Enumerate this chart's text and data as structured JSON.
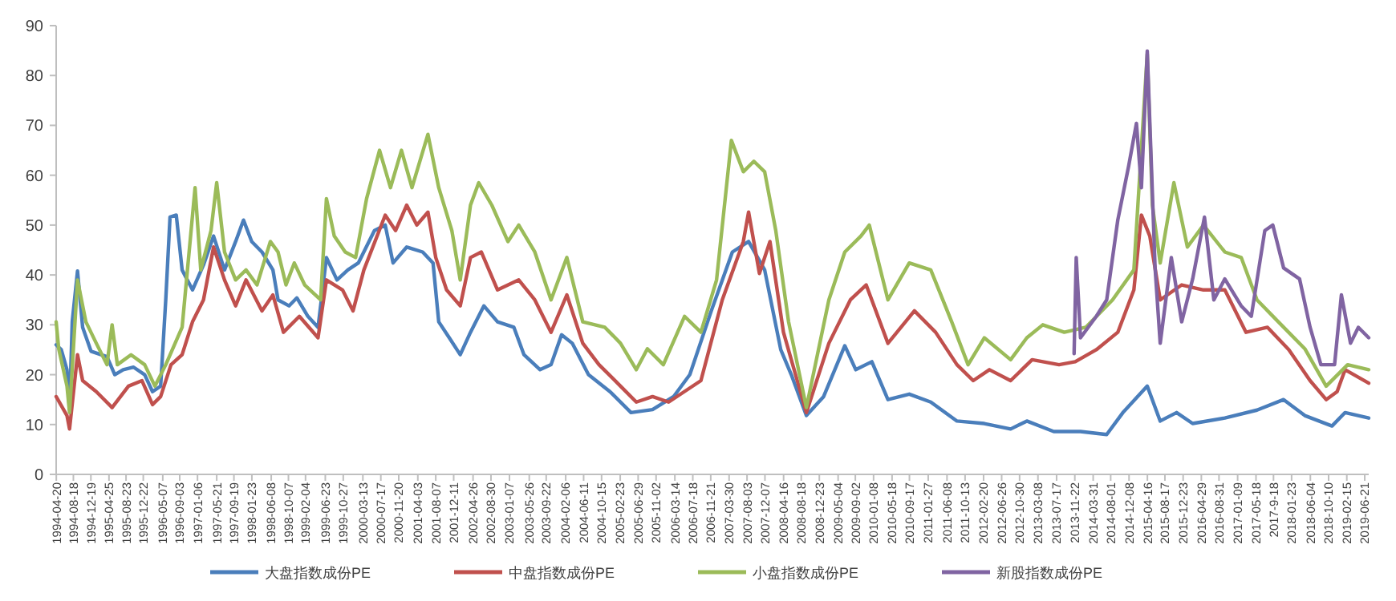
{
  "chart_data": {
    "type": "line",
    "legend": "bottom",
    "xlim": [
      "1994-04-19",
      "2019-07-19"
    ],
    "ylim": [
      0,
      90
    ],
    "yticks": [
      0,
      10,
      20,
      30,
      40,
      50,
      60,
      70,
      80,
      90
    ],
    "xticks": [
      "1994-04-20",
      "1994-08-18",
      "1994-12-19",
      "1995-04-25",
      "1995-08-23",
      "1995-12-22",
      "1996-05-07",
      "1996-09-03",
      "1997-01-06",
      "1997-05-21",
      "1997-09-19",
      "1998-01-23",
      "1998-06-08",
      "1998-10-07",
      "1999-02-04",
      "1999-06-23",
      "1999-10-27",
      "2000-03-13",
      "2000-07-17",
      "2000-11-20",
      "2001-04-03",
      "2001-08-07",
      "2001-12-11",
      "2002-04-26",
      "2002-08-30",
      "2003-01-07",
      "2003-05-26",
      "2003-09-22",
      "2004-02-06",
      "2004-06-11",
      "2004-10-15",
      "2005-02-23",
      "2005-06-29",
      "2005-11-02",
      "2006-03-14",
      "2006-07-18",
      "2006-11-21",
      "2007-03-30",
      "2007-08-03",
      "2007-12-07",
      "2008-04-16",
      "2008-08-18",
      "2008-12-23",
      "2009-05-04",
      "2009-09-02",
      "2010-01-08",
      "2010-05-18",
      "2010-09-17",
      "2011-01-27",
      "2011-06-08",
      "2011-10-13",
      "2012-02-20",
      "2012-06-26",
      "2012-10-30",
      "2013-03-08",
      "2013-07-17",
      "2013-11-22",
      "2014-03-31",
      "2014-08-01",
      "2014-12-08",
      "2015-04-16",
      "2015-08-17",
      "2015-12-23",
      "2016-04-29",
      "2016-08-31",
      "2017-01-09",
      "2017-05-18",
      {
        "value": "2017-09-18",
        "label": "2017-9-18"
      },
      "2018-01-23",
      "2018-06-04",
      "2018-10-10",
      "2019-02-15",
      "2019-06-21"
    ],
    "series": [
      {
        "name": "大盘指数成份PE",
        "color": "#4a7ebb",
        "x": [
          "1994-04-19",
          "1994-05-25",
          "1994-07-04",
          "1994-07-22",
          "1994-08-10",
          "1994-09-16",
          "1994-10-22",
          "1994-12-20",
          "1995-04-11",
          "1995-06-05",
          "1995-08-03",
          "1995-10-15",
          "1996-01-01",
          "1996-02-25",
          "1996-04-22",
          "1996-05-28",
          "1996-06-27",
          "1996-08-10",
          "1996-09-20",
          "1996-12-02",
          "1997-02-17",
          "1997-04-29",
          "1997-07-15",
          "1997-10-01",
          "1997-11-25",
          "1998-01-22",
          "1998-04-04",
          "1998-06-20",
          "1998-07-26",
          "1998-10-11",
          "1998-12-05",
          "1999-02-21",
          "1999-05-03",
          "1999-07-01",
          "1999-09-13",
          "1999-11-28",
          "2000-02-10",
          "2000-06-02",
          "2000-08-17",
          "2000-10-11",
          "2001-01-15",
          "2001-05-07",
          "2001-07-19",
          "2001-08-28",
          "2001-11-10",
          "2002-01-26",
          "2002-04-08",
          "2002-07-11",
          "2002-10-15",
          "2003-02-07",
          "2003-04-19",
          "2003-08-10",
          "2003-10-26",
          "2004-01-08",
          "2004-03-23",
          "2004-07-15",
          "2004-12-13",
          "2005-05-10",
          "2005-10-08",
          "2006-03-05",
          "2006-06-27",
          "2006-11-25",
          "2007-04-22",
          "2007-08-14",
          "2007-12-05",
          "2008-03-27",
          "2008-06-09",
          "2008-09-23",
          "2009-01-22",
          "2009-06-20",
          "2009-09-05",
          "2009-12-27",
          "2010-04-19",
          "2010-09-16",
          "2011-02-14",
          "2011-08-17",
          "2012-02-25",
          "2012-08-28",
          "2012-12-20",
          "2013-06-27",
          "2014-01-01",
          "2014-07-04",
          "2014-10-26",
          "2015-04-15",
          "2015-07-15",
          "2015-11-07",
          "2016-02-28",
          "2016-10-11",
          "2017-05-25",
          "2017-11-28",
          "2018-04-26",
          "2018-11-03",
          "2019-02-03",
          "2019-07-19"
        ],
        "values": [
          26,
          25,
          21,
          13,
          30.6,
          40.8,
          29.5,
          24.7,
          23.6,
          20,
          21,
          21.5,
          20,
          16.6,
          17.7,
          35,
          51.6,
          52,
          41,
          37,
          42,
          47.8,
          41,
          46.7,
          51,
          46.7,
          44.6,
          41,
          35,
          33.8,
          35.4,
          31.7,
          29.5,
          43.5,
          39,
          41,
          42.4,
          48.9,
          50,
          42.4,
          45.6,
          44.6,
          42.4,
          30.6,
          27.4,
          24,
          28.5,
          33.8,
          30.6,
          29.5,
          24,
          21,
          22,
          28,
          26.3,
          20,
          16.6,
          12.4,
          13,
          15.6,
          20,
          32.8,
          44.6,
          46.7,
          41,
          25,
          20,
          11.8,
          15.6,
          25.8,
          21,
          22.6,
          15,
          16.1,
          14.5,
          10.7,
          10.2,
          9.1,
          10.7,
          8.6,
          8.6,
          8,
          12.4,
          17.7,
          10.7,
          12.4,
          10.2,
          11.3,
          12.9,
          15,
          11.8,
          9.7,
          12.4,
          11.3
        ]
      },
      {
        "name": "中盘指数成份PE",
        "color": "#c0504d",
        "x": [
          "1994-04-19",
          "1994-07-04",
          "1994-07-22",
          "1994-09-16",
          "1994-10-22",
          "1995-01-26",
          "1995-05-17",
          "1995-09-09",
          "1995-12-13",
          "1996-02-25",
          "1996-04-22",
          "1996-07-04",
          "1996-09-20",
          "1996-12-02",
          "1997-02-17",
          "1997-04-29",
          "1997-07-15",
          "1997-10-01",
          "1997-12-13",
          "1998-04-04",
          "1998-06-20",
          "1998-09-02",
          "1998-12-23",
          "1999-05-03",
          "1999-07-01",
          "1999-10-22",
          "2000-01-04",
          "2000-03-20",
          "2000-08-17",
          "2000-10-29",
          "2001-01-15",
          "2001-03-27",
          "2001-06-13",
          "2001-08-07",
          "2001-10-22",
          "2002-01-26",
          "2002-04-08",
          "2002-06-23",
          "2002-10-15",
          "2003-03-13",
          "2003-07-04",
          "2003-10-26",
          "2004-02-14",
          "2004-06-05",
          "2004-09-27",
          "2005-02-25",
          "2005-06-16",
          "2005-10-08",
          "2006-01-29",
          "2006-09-13",
          "2007-02-10",
          "2007-07-08",
          "2007-08-14",
          "2007-10-29",
          "2008-01-11",
          "2008-04-15",
          "2008-09-23",
          "2009-02-28",
          "2009-07-29",
          "2009-11-17",
          "2010-04-19",
          "2010-10-22",
          "2011-03-20",
          "2011-08-17",
          "2011-12-09",
          "2012-04-01",
          "2012-08-28",
          "2013-01-26",
          "2013-08-03",
          "2013-11-25",
          "2014-04-22",
          "2014-09-20",
          "2015-01-11",
          "2015-03-05",
          "2015-05-03",
          "2015-07-15",
          "2015-12-13",
          "2016-05-14",
          "2016-10-11",
          "2017-03-09",
          "2017-08-07",
          "2018-01-04",
          "2018-06-02",
          "2018-09-23",
          "2018-12-09",
          "2019-02-03",
          "2019-07-19"
        ],
        "values": [
          15.6,
          11.8,
          9.1,
          24,
          18.8,
          16.6,
          13.4,
          17.7,
          18.8,
          14,
          15.6,
          22,
          24,
          30.6,
          35,
          45.6,
          39,
          33.8,
          39,
          32.8,
          36,
          28.5,
          31.7,
          27.4,
          39,
          37,
          32.8,
          41,
          52,
          48.9,
          54,
          50,
          52.6,
          43.5,
          37,
          33.8,
          43.5,
          44.6,
          37,
          39,
          35,
          28.5,
          36,
          26.3,
          22,
          17.7,
          14.5,
          15.6,
          14.5,
          18.8,
          35,
          46.7,
          52.6,
          40.3,
          46.7,
          28.5,
          12.4,
          26.3,
          35,
          38,
          26.3,
          32.8,
          28.5,
          22,
          18.8,
          21,
          18.8,
          23,
          22,
          22.6,
          25,
          28.5,
          37,
          52,
          47.8,
          35,
          38,
          37,
          37,
          28.5,
          29.5,
          25,
          18.8,
          15,
          16.6,
          21,
          18.3
        ]
      },
      {
        "name": "小盘指数成份PE",
        "color": "#9bbb59",
        "x": [
          "1994-04-19",
          "1994-05-07",
          "1994-07-04",
          "1994-07-22",
          "1994-09-16",
          "1994-11-14",
          "1995-01-26",
          "1995-04-11",
          "1995-05-17",
          "1995-06-23",
          "1995-09-27",
          "1996-01-01",
          "1996-03-13",
          "1996-05-28",
          "1996-09-20",
          "1996-12-20",
          "1997-01-29",
          "1997-04-11",
          "1997-05-21",
          "1997-07-15",
          "1997-10-01",
          "1997-12-13",
          "1998-02-28",
          "1998-06-02",
          "1998-07-26",
          "1998-09-20",
          "1998-11-17",
          "1999-01-29",
          "1999-05-21",
          "1999-07-01",
          "1999-08-25",
          "1999-11-10",
          "2000-01-22",
          "2000-04-08",
          "2000-07-08",
          "2000-09-23",
          "2000-12-09",
          "2001-02-21",
          "2001-06-13",
          "2001-08-28",
          "2001-11-28",
          "2002-01-26",
          "2002-04-08",
          "2002-06-05",
          "2002-09-05",
          "2002-12-27",
          "2003-03-13",
          "2003-07-04",
          "2003-10-26",
          "2004-02-14",
          "2004-06-05",
          "2004-11-07",
          "2005-02-25",
          "2005-06-16",
          "2005-09-02",
          "2005-12-23",
          "2006-05-21",
          "2006-09-13",
          "2007-01-01",
          "2007-04-15",
          "2007-07-08",
          "2007-09-20",
          "2007-12-05",
          "2008-02-21",
          "2008-05-21",
          "2008-09-23",
          "2009-02-28",
          "2009-06-20",
          "2009-10-11",
          "2009-12-09",
          "2010-04-19",
          "2010-09-16",
          "2011-02-14",
          "2011-07-11",
          "2011-11-03",
          "2012-02-25",
          "2012-08-28",
          "2012-12-20",
          "2013-04-11",
          "2013-09-09",
          "2014-02-07",
          "2014-08-14",
          "2015-01-11",
          "2015-04-15",
          "2015-05-21",
          "2015-07-15",
          "2015-10-19",
          "2016-01-22",
          "2016-05-14",
          "2016-10-11",
          "2017-02-03",
          "2017-05-25",
          "2017-10-22",
          "2018-04-26",
          "2018-09-23",
          "2019-02-21",
          "2019-07-19"
        ],
        "values": [
          30.6,
          25.2,
          17.7,
          12.4,
          39,
          30.6,
          26.3,
          22,
          30,
          22,
          24,
          22,
          17.7,
          22,
          29.5,
          57.5,
          41,
          48.9,
          58.5,
          44.6,
          39,
          41,
          38,
          46.7,
          44.6,
          38,
          42.4,
          38,
          35,
          55.3,
          47.8,
          44.6,
          43.5,
          55.3,
          65,
          57.5,
          65,
          57.5,
          68.2,
          57.5,
          48.9,
          39,
          54,
          58.5,
          54,
          46.7,
          50,
          44.6,
          35,
          43.5,
          30.6,
          29.5,
          26.3,
          21,
          25.2,
          22,
          31.7,
          28.5,
          39,
          67,
          60.7,
          62.8,
          60.7,
          48.9,
          30.6,
          13.4,
          35,
          44.6,
          47.8,
          50,
          35,
          42.4,
          41,
          30.6,
          22,
          27.4,
          23,
          27.4,
          30,
          28.5,
          29.5,
          35,
          41,
          84.3,
          54,
          42.4,
          58.5,
          45.6,
          50,
          44.6,
          43.5,
          35,
          30.6,
          25.2,
          17.7,
          22,
          21
        ]
      },
      {
        "name": "新股指数成份PE",
        "color": "#8064a2",
        "x": [
          "2013-11-17",
          "2013-12-02",
          "2014-01-01",
          "2014-04-22",
          "2014-07-04",
          "2014-09-20",
          "2014-12-05",
          "2015-01-29",
          "2015-03-05",
          "2015-04-15",
          "2015-06-09",
          "2015-07-15",
          "2015-10-01",
          "2015-12-13",
          "2016-02-28",
          "2016-05-21",
          "2016-07-26",
          "2016-10-11",
          "2017-02-03",
          "2017-04-15",
          "2017-07-19",
          "2017-09-13",
          "2017-11-28",
          "2018-03-20",
          "2018-06-02",
          "2018-08-17",
          "2018-11-21",
          "2019-01-08",
          "2019-03-13",
          "2019-05-07",
          "2019-07-19"
        ],
        "values": [
          24.2,
          43.5,
          27.4,
          31.7,
          35,
          51,
          61.8,
          70.4,
          57.5,
          84.9,
          41.4,
          26.3,
          43.5,
          30.6,
          39.2,
          51.6,
          35,
          39.2,
          33.8,
          31.7,
          48.9,
          50,
          41.4,
          39.2,
          29.5,
          22,
          22,
          36,
          26.3,
          29.5,
          27.4
        ]
      }
    ]
  }
}
